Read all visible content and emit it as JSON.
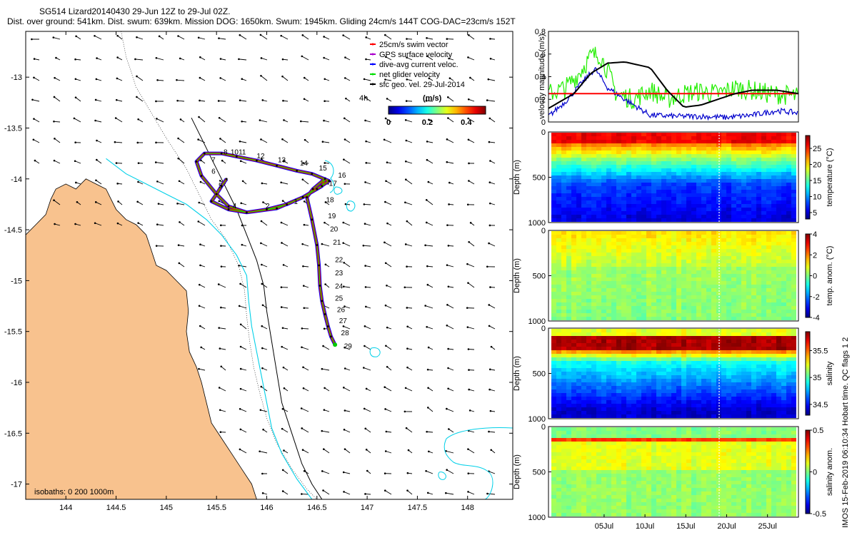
{
  "header": {
    "line1": "SG514 Lizard20140430 29-Jun 12Z to 29-Jul 02Z.",
    "line2": "Dist. over ground: 541km. Dist. swum: 639km. Mission DOG: 1650km. Swum: 1945km. Gliding 24cm/s 144T COG-DAC=23cm/s 152T"
  },
  "side_stamp": "IMOS 15-Feb-2019 06:10:34 Hobart time. QC flags 1  2",
  "colors": {
    "land": "#f8c28e",
    "isobath_200": "#00d0e8",
    "track_red": "#ff0000",
    "track_blue": "#0000ff",
    "track_green": "#00dd00",
    "series_black": "#000000",
    "series_red": "#ff0000",
    "series_blue": "#0000cc",
    "series_green": "#22ee00"
  },
  "chart_data": [
    {
      "type": "scatter",
      "title": "",
      "xlim": [
        143.6,
        148.45
      ],
      "ylim": [
        -17.15,
        -12.55
      ],
      "xticks": [
        144,
        144.5,
        145,
        145.5,
        146,
        146.5,
        147,
        147.5,
        148
      ],
      "yticks": [
        -13,
        -13.5,
        -14,
        -14.5,
        -15,
        -15.5,
        -16,
        -16.5,
        -17
      ],
      "isobaths_label": "isobaths: 0   200  1000m",
      "colorbar": {
        "label": "(m/s)",
        "period": "4h",
        "ticks": [
          0,
          0.2,
          0.4
        ],
        "range": [
          0,
          0.5
        ]
      },
      "legend": [
        {
          "label": "25cm/s swim vector",
          "color": "#ff0000"
        },
        {
          "label": "GPS surface velocity",
          "color": "#aa00cc"
        },
        {
          "label": "dive-avg current veloc.",
          "color": "#0000ff"
        },
        {
          "label": "net glider velocity",
          "color": "#00dd00"
        },
        {
          "label": "sfc geo. vel. 29-Jul-2014",
          "color": "#000000"
        }
      ],
      "track": [
        [
          145.6,
          -14.0
        ],
        [
          145.55,
          -14.07
        ],
        [
          145.5,
          -14.15
        ],
        [
          145.45,
          -14.22
        ],
        [
          145.62,
          -14.3
        ],
        [
          145.8,
          -14.33
        ],
        [
          146.0,
          -14.3
        ],
        [
          146.2,
          -14.25
        ],
        [
          146.36,
          -14.18
        ],
        [
          146.5,
          -14.1
        ],
        [
          146.62,
          -14.02
        ],
        [
          146.45,
          -13.95
        ],
        [
          146.3,
          -13.92
        ],
        [
          146.1,
          -13.87
        ],
        [
          145.9,
          -13.82
        ],
        [
          145.7,
          -13.78
        ],
        [
          145.55,
          -13.75
        ],
        [
          145.38,
          -13.75
        ],
        [
          145.3,
          -13.83
        ],
        [
          145.35,
          -13.97
        ],
        [
          145.5,
          -14.15
        ],
        [
          145.62,
          -14.27
        ],
        [
          145.8,
          -14.33
        ],
        [
          146.1,
          -14.29
        ],
        [
          146.36,
          -14.18
        ],
        [
          146.55,
          -14.07
        ],
        [
          146.58,
          -14.0
        ],
        [
          146.46,
          -14.1
        ],
        [
          146.4,
          -14.18
        ],
        [
          146.45,
          -14.4
        ],
        [
          146.5,
          -14.65
        ],
        [
          146.52,
          -14.85
        ],
        [
          146.53,
          -15.05
        ],
        [
          146.55,
          -15.2
        ],
        [
          146.58,
          -15.33
        ],
        [
          146.61,
          -15.45
        ],
        [
          146.64,
          -15.55
        ],
        [
          146.68,
          -15.63
        ]
      ],
      "day_labels": [
        {
          "text": "1",
          "x": 146.27,
          "y": -14.22
        },
        {
          "text": "2",
          "x": 145.99,
          "y": -14.26
        },
        {
          "text": "4",
          "x": 145.66,
          "y": -14.26
        },
        {
          "text": "5",
          "x": 145.52,
          "y": -14.06
        },
        {
          "text": "6",
          "x": 145.45,
          "y": -13.92
        },
        {
          "text": "7",
          "x": 145.45,
          "y": -13.81
        },
        {
          "text": "8",
          "x": 145.57,
          "y": -13.73
        },
        {
          "text": "10",
          "x": 145.64,
          "y": -13.73
        },
        {
          "text": "11",
          "x": 145.72,
          "y": -13.73
        },
        {
          "text": "12",
          "x": 145.9,
          "y": -13.77
        },
        {
          "text": "13",
          "x": 146.11,
          "y": -13.81
        },
        {
          "text": "14",
          "x": 146.33,
          "y": -13.84
        },
        {
          "text": "15",
          "x": 146.52,
          "y": -13.89
        },
        {
          "text": "16",
          "x": 146.71,
          "y": -13.96
        },
        {
          "text": "17",
          "x": 146.62,
          "y": -14.04
        },
        {
          "text": "18",
          "x": 146.59,
          "y": -14.2
        },
        {
          "text": "19",
          "x": 146.61,
          "y": -14.36
        },
        {
          "text": "20",
          "x": 146.63,
          "y": -14.49
        },
        {
          "text": "21",
          "x": 146.66,
          "y": -14.62
        },
        {
          "text": "22",
          "x": 146.68,
          "y": -14.79
        },
        {
          "text": "23",
          "x": 146.68,
          "y": -14.92
        },
        {
          "text": "24",
          "x": 146.68,
          "y": -15.05
        },
        {
          "text": "25",
          "x": 146.68,
          "y": -15.17
        },
        {
          "text": "26",
          "x": 146.7,
          "y": -15.28
        },
        {
          "text": "27",
          "x": 146.72,
          "y": -15.39
        },
        {
          "text": "28",
          "x": 146.74,
          "y": -15.51
        },
        {
          "text": "29",
          "x": 146.77,
          "y": -15.64
        }
      ],
      "coastline": [
        [
          143.6,
          -14.55
        ],
        [
          143.7,
          -14.45
        ],
        [
          143.8,
          -14.35
        ],
        [
          143.85,
          -14.2
        ],
        [
          143.9,
          -14.1
        ],
        [
          144.0,
          -14.05
        ],
        [
          144.1,
          -14.1
        ],
        [
          144.2,
          -14.0
        ],
        [
          144.3,
          -14.05
        ],
        [
          144.4,
          -14.1
        ],
        [
          144.45,
          -14.2
        ],
        [
          144.5,
          -14.3
        ],
        [
          144.6,
          -14.4
        ],
        [
          144.7,
          -14.45
        ],
        [
          144.8,
          -14.55
        ],
        [
          144.85,
          -14.7
        ],
        [
          144.9,
          -14.85
        ],
        [
          145.0,
          -14.9
        ],
        [
          145.1,
          -15.0
        ],
        [
          145.2,
          -15.1
        ],
        [
          145.22,
          -15.3
        ],
        [
          145.2,
          -15.5
        ],
        [
          145.23,
          -15.7
        ],
        [
          145.3,
          -15.85
        ],
        [
          145.35,
          -16.0
        ],
        [
          145.4,
          -16.2
        ],
        [
          145.45,
          -16.4
        ],
        [
          145.55,
          -16.55
        ],
        [
          145.65,
          -16.7
        ],
        [
          145.75,
          -16.85
        ],
        [
          145.85,
          -17.0
        ],
        [
          145.9,
          -17.15
        ]
      ],
      "isobath_200": [
        [
          144.4,
          -13.8
        ],
        [
          144.6,
          -13.95
        ],
        [
          144.8,
          -14.05
        ],
        [
          145.0,
          -14.15
        ],
        [
          145.2,
          -14.25
        ],
        [
          145.4,
          -14.4
        ],
        [
          145.55,
          -14.55
        ],
        [
          145.7,
          -14.75
        ],
        [
          145.8,
          -14.95
        ],
        [
          145.82,
          -15.2
        ],
        [
          145.85,
          -15.45
        ],
        [
          145.9,
          -15.7
        ],
        [
          145.95,
          -15.95
        ],
        [
          146.0,
          -16.2
        ],
        [
          146.05,
          -16.45
        ],
        [
          146.15,
          -16.7
        ],
        [
          146.3,
          -16.95
        ],
        [
          146.45,
          -17.15
        ]
      ],
      "isobath_1000": [
        [
          145.25,
          -13.4
        ],
        [
          145.35,
          -13.6
        ],
        [
          145.45,
          -13.8
        ],
        [
          145.55,
          -14.0
        ],
        [
          145.7,
          -14.3
        ],
        [
          145.8,
          -14.55
        ],
        [
          145.9,
          -14.8
        ],
        [
          145.97,
          -15.05
        ],
        [
          146.0,
          -15.3
        ],
        [
          146.05,
          -15.6
        ],
        [
          146.1,
          -15.9
        ],
        [
          146.15,
          -16.2
        ],
        [
          146.25,
          -16.5
        ],
        [
          146.35,
          -16.8
        ],
        [
          146.45,
          -17.0
        ],
        [
          146.55,
          -17.15
        ]
      ],
      "isobath_shallow": [
        [
          144.55,
          -12.55
        ],
        [
          144.6,
          -12.8
        ],
        [
          144.7,
          -13.1
        ],
        [
          144.85,
          -13.35
        ],
        [
          145.0,
          -13.6
        ],
        [
          145.1,
          -13.75
        ],
        [
          145.2,
          -13.9
        ],
        [
          145.3,
          -14.1
        ],
        [
          145.45,
          -14.4
        ],
        [
          145.6,
          -14.6
        ],
        [
          145.72,
          -14.85
        ],
        [
          145.78,
          -15.1
        ],
        [
          145.8,
          -15.35
        ],
        [
          145.83,
          -15.6
        ],
        [
          145.87,
          -15.85
        ],
        [
          145.93,
          -16.1
        ],
        [
          146.0,
          -16.35
        ],
        [
          146.1,
          -16.6
        ],
        [
          146.25,
          -16.85
        ],
        [
          146.4,
          -17.05
        ],
        [
          146.5,
          -17.15
        ]
      ],
      "current_field": {
        "direction": "southwest",
        "speed": 0.25
      }
    },
    {
      "type": "line",
      "title": "",
      "ylabel": "velocity magnitude (m/s)",
      "ylim": [
        0,
        0.8
      ],
      "yticks": [
        0,
        0.2,
        0.4,
        0.6,
        0.8
      ],
      "x_range_day": [
        29.5,
        31.0
      ],
      "series": [
        {
          "key": "geostrophic",
          "color": "#000000",
          "x": [
            0,
            3,
            5,
            7,
            9,
            12,
            14,
            16,
            18,
            20,
            22,
            24,
            27,
            29.5
          ],
          "y": [
            0.12,
            0.25,
            0.43,
            0.52,
            0.53,
            0.48,
            0.28,
            0.13,
            0.15,
            0.2,
            0.25,
            0.28,
            0.28,
            0.25
          ]
        },
        {
          "key": "swim",
          "color": "#ff0000",
          "x": [
            0,
            29.5
          ],
          "y": [
            0.25,
            0.25
          ]
        },
        {
          "key": "dac",
          "color": "#0000cc",
          "x": [
            0,
            2,
            4,
            5.5,
            7,
            9,
            12,
            15,
            18,
            21,
            24,
            27,
            29.5
          ],
          "y": [
            0.05,
            0.18,
            0.35,
            0.47,
            0.3,
            0.2,
            0.06,
            0.05,
            0.05,
            0.04,
            0.06,
            0.1,
            0.08
          ]
        },
        {
          "key": "net",
          "color": "#22ee00",
          "x": [
            0,
            2,
            3.5,
            5,
            6,
            7,
            8,
            10,
            12,
            14,
            16,
            18,
            20,
            22,
            24,
            26,
            28,
            29.5
          ],
          "y": [
            0.25,
            0.3,
            0.42,
            0.58,
            0.6,
            0.45,
            0.25,
            0.2,
            0.28,
            0.2,
            0.25,
            0.27,
            0.25,
            0.3,
            0.28,
            0.25,
            0.24,
            0.22
          ]
        }
      ]
    },
    {
      "type": "heatmap",
      "ylabel": "Depth (m)",
      "colorbar_label": "temperature (°C)",
      "depth_ticks": [
        0,
        500,
        1000
      ],
      "colorbar_ticks": [
        5,
        10,
        15,
        20,
        25
      ],
      "clim": [
        3,
        29
      ]
    },
    {
      "type": "heatmap",
      "ylabel": "Depth (m)",
      "colorbar_label": "temp. anom. (°C)",
      "depth_ticks": [
        0,
        500,
        1000
      ],
      "colorbar_ticks": [
        -4,
        -2,
        0,
        2,
        4
      ],
      "clim": [
        -4,
        4
      ]
    },
    {
      "type": "heatmap",
      "ylabel": "Depth (m)",
      "colorbar_label": "salinity",
      "depth_ticks": [
        0,
        500,
        1000
      ],
      "colorbar_ticks": [
        34.5,
        35,
        35.5
      ],
      "clim": [
        34.3,
        35.85
      ]
    },
    {
      "type": "heatmap",
      "ylabel": "Depth (m)",
      "colorbar_label": "salinity anom.",
      "depth_ticks": [
        0,
        500,
        1000
      ],
      "colorbar_ticks": [
        -0.5,
        0,
        0.5
      ],
      "clim": [
        -0.5,
        0.5
      ],
      "xticks": [
        "05Jul",
        "10Jul",
        "15Jul",
        "20Jul",
        "25Jul"
      ]
    }
  ]
}
